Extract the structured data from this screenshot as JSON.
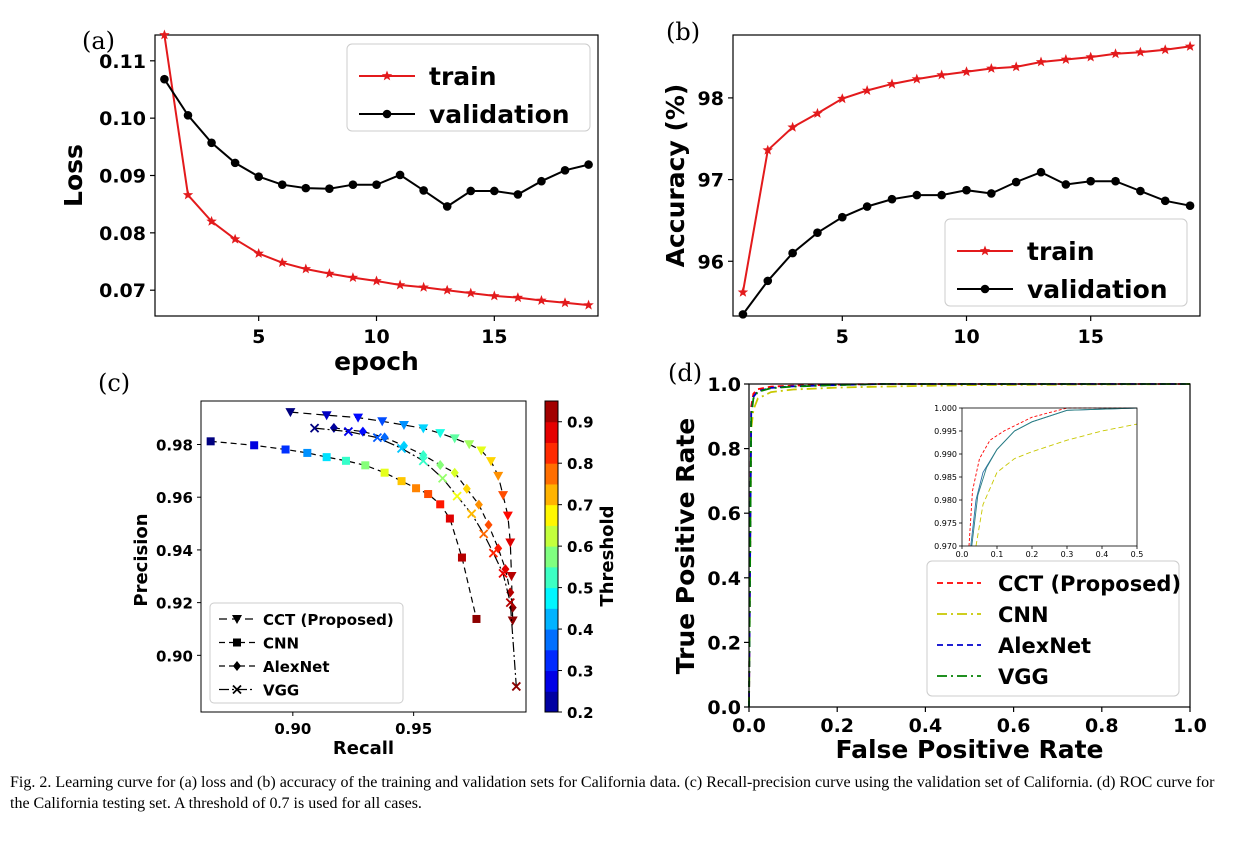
{
  "caption": "Fig. 2.   Learning curve for (a) loss and (b) accuracy of the training and validation sets for California data. (c) Recall-precision curve using the validation set of California. (d) ROC curve for the California testing set. A threshold of 0.7 is used for all cases.",
  "colors": {
    "train": "#e31a1c",
    "validation": "#000000",
    "cct": "#ff0000",
    "cnn": "#c8c800",
    "alexnet": "#0000cc",
    "vgg": "#008000"
  },
  "chart_data": [
    {
      "id": "a",
      "panel_label": "(a)",
      "type": "line",
      "xlabel": "epoch",
      "ylabel": "Loss",
      "xlim": [
        0.6,
        19.4
      ],
      "ylim": [
        0.0655,
        0.1145
      ],
      "xticks": [
        5,
        10,
        15
      ],
      "yticks": [
        0.07,
        0.08,
        0.09,
        0.1,
        0.11
      ],
      "ytick_labels": [
        "0.07",
        "0.08",
        "0.09",
        "0.10",
        "0.11"
      ],
      "legend_position": "top-right",
      "x": [
        1,
        2,
        3,
        4,
        5,
        6,
        7,
        8,
        9,
        10,
        11,
        12,
        13,
        14,
        15,
        16,
        17,
        18,
        19
      ],
      "series": [
        {
          "name": "train",
          "marker": "star",
          "values": [
            0.1145,
            0.0866,
            0.082,
            0.0789,
            0.0764,
            0.0748,
            0.0737,
            0.0729,
            0.0722,
            0.0716,
            0.0709,
            0.0705,
            0.07,
            0.0695,
            0.069,
            0.0687,
            0.0682,
            0.0678,
            0.0674
          ]
        },
        {
          "name": "validation",
          "marker": "circle",
          "values": [
            0.1068,
            0.1005,
            0.0957,
            0.0922,
            0.0898,
            0.0884,
            0.0878,
            0.0877,
            0.0884,
            0.0884,
            0.0901,
            0.0874,
            0.0846,
            0.0873,
            0.0873,
            0.0867,
            0.089,
            0.0909,
            0.0919
          ]
        }
      ]
    },
    {
      "id": "b",
      "panel_label": "(b)",
      "type": "line",
      "xlabel": "",
      "ylabel": "Accuracy (%)",
      "xlim": [
        0.6,
        19.4
      ],
      "ylim": [
        95.33,
        98.77
      ],
      "xticks": [
        5,
        10,
        15
      ],
      "yticks": [
        96,
        97,
        98
      ],
      "ytick_labels": [
        "96",
        "97",
        "98"
      ],
      "legend_position": "lower-right",
      "x": [
        1,
        2,
        3,
        4,
        5,
        6,
        7,
        8,
        9,
        10,
        11,
        12,
        13,
        14,
        15,
        16,
        17,
        18,
        19
      ],
      "series": [
        {
          "name": "train",
          "marker": "star",
          "values": [
            95.62,
            97.36,
            97.64,
            97.81,
            97.99,
            98.09,
            98.17,
            98.23,
            98.28,
            98.32,
            98.36,
            98.38,
            98.44,
            98.47,
            98.5,
            98.54,
            98.56,
            98.59,
            98.63
          ]
        },
        {
          "name": "validation",
          "marker": "circle",
          "values": [
            95.35,
            95.76,
            96.1,
            96.35,
            96.54,
            96.67,
            96.76,
            96.81,
            96.81,
            96.87,
            96.83,
            96.97,
            97.09,
            96.94,
            96.98,
            96.98,
            96.86,
            96.74,
            96.68
          ]
        }
      ]
    },
    {
      "id": "c",
      "panel_label": "(c)",
      "type": "scatter",
      "xlabel": "Recall",
      "ylabel": "Precision",
      "xlim": [
        0.862,
        0.9965
      ],
      "ylim": [
        0.8785,
        0.9965
      ],
      "xticks": [
        0.9,
        0.95
      ],
      "xtick_labels": [
        "0.90",
        "0.95"
      ],
      "yticks": [
        0.9,
        0.92,
        0.94,
        0.96,
        0.98
      ],
      "ytick_labels": [
        "0.90",
        "0.92",
        "0.94",
        "0.96",
        "0.98"
      ],
      "colorbar": {
        "label": "Threshold",
        "range": [
          0.2,
          0.95
        ],
        "ticks": [
          0.2,
          0.3,
          0.4,
          0.5,
          0.6,
          0.7,
          0.8,
          0.9
        ],
        "tick_labels": [
          "0.2",
          "0.3",
          "0.4",
          "0.5",
          "0.6",
          "0.7",
          "0.8",
          "0.9"
        ],
        "colormap": "jet"
      },
      "legend_position": "bottom-left",
      "series": [
        {
          "name": "CCT (Proposed)",
          "marker": "triangle-down",
          "dash": "8 5",
          "recall": [
            0.899,
            0.914,
            0.927,
            0.937,
            0.946,
            0.954,
            0.961,
            0.967,
            0.973,
            0.978,
            0.982,
            0.985,
            0.987,
            0.989,
            0.99,
            0.9905,
            0.991
          ],
          "precision": [
            0.9923,
            0.9911,
            0.9902,
            0.9888,
            0.9874,
            0.9861,
            0.9843,
            0.9823,
            0.9801,
            0.9777,
            0.9737,
            0.9681,
            0.9608,
            0.953,
            0.9428,
            0.9301,
            0.9132
          ],
          "threshold": [
            0.2,
            0.25,
            0.3,
            0.35,
            0.4,
            0.45,
            0.5,
            0.55,
            0.6,
            0.65,
            0.7,
            0.75,
            0.8,
            0.85,
            0.88,
            0.91,
            0.94
          ]
        },
        {
          "name": "CNN",
          "marker": "square",
          "dash": "6 4",
          "recall": [
            0.866,
            0.884,
            0.897,
            0.906,
            0.914,
            0.922,
            0.93,
            0.938,
            0.945,
            0.951,
            0.956,
            0.961,
            0.965,
            0.97,
            0.976
          ],
          "precision": [
            0.9812,
            0.9797,
            0.9781,
            0.9768,
            0.9752,
            0.9738,
            0.9721,
            0.9693,
            0.9661,
            0.9634,
            0.9612,
            0.9573,
            0.9519,
            0.9371,
            0.9138
          ],
          "threshold": [
            0.2,
            0.27,
            0.33,
            0.4,
            0.46,
            0.52,
            0.58,
            0.65,
            0.71,
            0.76,
            0.8,
            0.84,
            0.88,
            0.91,
            0.94
          ]
        },
        {
          "name": "AlexNet",
          "marker": "diamond",
          "dash": "6 4",
          "recall": [
            0.917,
            0.929,
            0.938,
            0.946,
            0.954,
            0.961,
            0.967,
            0.972,
            0.977,
            0.981,
            0.985,
            0.988,
            0.99,
            0.991
          ],
          "precision": [
            0.9863,
            0.9849,
            0.9827,
            0.9795,
            0.976,
            0.9722,
            0.9693,
            0.9632,
            0.9572,
            0.9495,
            0.9406,
            0.9327,
            0.9239,
            0.9181
          ],
          "threshold": [
            0.22,
            0.3,
            0.37,
            0.45,
            0.52,
            0.58,
            0.64,
            0.7,
            0.75,
            0.8,
            0.84,
            0.88,
            0.91,
            0.94
          ]
        },
        {
          "name": "VGG",
          "marker": "x",
          "dash": "10 3 2 3",
          "recall": [
            0.909,
            0.923,
            0.935,
            0.945,
            0.954,
            0.962,
            0.968,
            0.974,
            0.979,
            0.983,
            0.987,
            0.99,
            0.9925
          ],
          "precision": [
            0.9862,
            0.9849,
            0.9826,
            0.9785,
            0.9738,
            0.9672,
            0.9604,
            0.9537,
            0.9461,
            0.9388,
            0.9311,
            0.92,
            0.8882
          ],
          "threshold": [
            0.2,
            0.28,
            0.36,
            0.44,
            0.52,
            0.59,
            0.66,
            0.72,
            0.78,
            0.83,
            0.87,
            0.91,
            0.94
          ]
        }
      ]
    },
    {
      "id": "d",
      "panel_label": "(d)",
      "type": "line",
      "xlabel": "False Positive Rate",
      "ylabel": "True Positive Rate",
      "xlim": [
        0,
        1
      ],
      "ylim": [
        0,
        1
      ],
      "xticks": [
        0.0,
        0.2,
        0.4,
        0.6,
        0.8,
        1.0
      ],
      "xtick_labels": [
        "0.0",
        "0.2",
        "0.4",
        "0.6",
        "0.8",
        "1.0"
      ],
      "yticks": [
        0.0,
        0.2,
        0.4,
        0.6,
        0.8,
        1.0
      ],
      "ytick_labels": [
        "0.0",
        "0.2",
        "0.4",
        "0.6",
        "0.8",
        "1.0"
      ],
      "legend_position": "lower-right",
      "series": [
        {
          "name": "CCT (Proposed)",
          "dash": "6 4",
          "fpr": [
            0,
            0.005,
            0.01,
            0.02,
            0.05,
            0.1,
            0.2,
            0.3,
            1.0
          ],
          "tpr": [
            0,
            0.93,
            0.97,
            0.984,
            0.992,
            0.995,
            0.998,
            1.0,
            1.0
          ]
        },
        {
          "name": "CNN",
          "dash": "10 4 2 4",
          "fpr": [
            0,
            0.005,
            0.01,
            0.02,
            0.05,
            0.1,
            0.2,
            0.3,
            0.5,
            1.0
          ],
          "tpr": [
            0,
            0.86,
            0.92,
            0.955,
            0.975,
            0.983,
            0.989,
            0.992,
            0.9965,
            1.0
          ]
        },
        {
          "name": "AlexNet",
          "dash": "6 4",
          "fpr": [
            0,
            0.005,
            0.01,
            0.02,
            0.05,
            0.1,
            0.2,
            0.3,
            1.0
          ],
          "tpr": [
            0,
            0.91,
            0.96,
            0.978,
            0.988,
            0.993,
            0.997,
            1.0,
            1.0
          ]
        },
        {
          "name": "VGG",
          "dash": "10 4 2 4",
          "fpr": [
            0,
            0.005,
            0.01,
            0.02,
            0.05,
            0.1,
            0.2,
            0.3,
            1.0
          ],
          "tpr": [
            0,
            0.9,
            0.955,
            0.976,
            0.987,
            0.992,
            0.997,
            1.0,
            1.0
          ]
        }
      ],
      "inset": {
        "xlim": [
          0,
          0.5
        ],
        "ylim": [
          0.97,
          1.0
        ],
        "xticks": [
          0.0,
          0.1,
          0.2,
          0.3,
          0.4,
          0.5
        ],
        "xtick_labels": [
          "0.0",
          "0.1",
          "0.2",
          "0.3",
          "0.4",
          "0.5"
        ],
        "yticks": [
          0.97,
          0.975,
          0.98,
          0.985,
          0.99,
          0.995,
          1.0
        ],
        "ytick_labels": [
          "0.970",
          "0.975",
          "0.980",
          "0.985",
          "0.990",
          "0.995",
          "1.000"
        ],
        "series": [
          {
            "name": "CCT (Proposed)",
            "fpr": [
              0.02,
              0.03,
              0.05,
              0.08,
              0.12,
              0.2,
              0.3,
              0.5
            ],
            "tpr": [
              0.97,
              0.982,
              0.989,
              0.993,
              0.995,
              0.998,
              1.0,
              1.0
            ]
          },
          {
            "name": "CNN",
            "fpr": [
              0.04,
              0.06,
              0.1,
              0.15,
              0.2,
              0.3,
              0.4,
              0.5
            ],
            "tpr": [
              0.97,
              0.979,
              0.986,
              0.989,
              0.9905,
              0.993,
              0.995,
              0.9965
            ]
          },
          {
            "name": "AlexNet",
            "fpr": [
              0.025,
              0.04,
              0.06,
              0.1,
              0.15,
              0.2,
              0.3,
              0.5
            ],
            "tpr": [
              0.97,
              0.98,
              0.986,
              0.991,
              0.995,
              0.997,
              0.9995,
              1.0
            ]
          },
          {
            "name": "VGG",
            "fpr": [
              0.028,
              0.045,
              0.07,
              0.1,
              0.15,
              0.2,
              0.3,
              0.5
            ],
            "tpr": [
              0.97,
              0.981,
              0.987,
              0.991,
              0.995,
              0.997,
              0.9995,
              1.0
            ]
          }
        ]
      }
    }
  ]
}
